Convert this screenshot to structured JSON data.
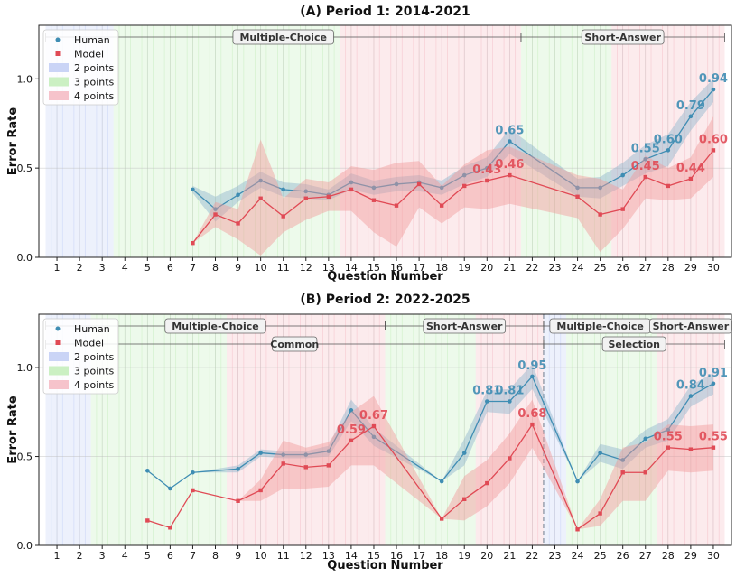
{
  "chart_data": [
    {
      "type": "line",
      "title": "(A) Period 1: 2014-2021",
      "xlabel": "Question Number",
      "ylabel": "Error Rate",
      "ylim": [
        0,
        1.3
      ],
      "yticks": [
        "0.0",
        "0.5",
        "1.0"
      ],
      "xticks": [
        1,
        2,
        3,
        4,
        5,
        6,
        7,
        8,
        9,
        10,
        11,
        12,
        13,
        14,
        15,
        16,
        17,
        18,
        19,
        20,
        21,
        22,
        23,
        24,
        25,
        26,
        27,
        28,
        29,
        30
      ],
      "grid": true,
      "legend_position": "top-left",
      "legend": [
        "Human",
        "Model",
        "2 points",
        "3 points",
        "4 points"
      ],
      "point_bands": [
        {
          "from": 1,
          "to": 3,
          "points": 2
        },
        {
          "from": 4,
          "to": 13,
          "points": 3
        },
        {
          "from": 14,
          "to": 21,
          "points": 4
        },
        {
          "from": 22,
          "to": 25,
          "points": 3
        },
        {
          "from": 26,
          "to": 30,
          "points": 4
        }
      ],
      "sections": [
        {
          "row": 0,
          "from": 1,
          "to": 21,
          "label": "Multiple-Choice"
        },
        {
          "row": 0,
          "from": 21,
          "to": 30,
          "label": "Short-Answer"
        }
      ],
      "series": [
        {
          "name": "Human",
          "x": [
            7,
            8,
            9,
            10,
            11,
            12,
            13,
            14,
            15,
            16,
            17,
            18,
            19,
            20,
            21,
            24,
            25,
            26,
            27,
            28,
            29,
            30
          ],
          "values": [
            0.38,
            0.27,
            0.35,
            0.43,
            0.38,
            0.37,
            0.35,
            0.42,
            0.39,
            0.41,
            0.42,
            0.39,
            0.46,
            0.5,
            0.65,
            0.39,
            0.39,
            0.46,
            0.55,
            0.6,
            0.79,
            0.94
          ],
          "lower": [
            0.36,
            0.2,
            0.31,
            0.39,
            0.34,
            0.33,
            0.32,
            0.38,
            0.35,
            0.37,
            0.37,
            0.35,
            0.41,
            0.45,
            0.58,
            0.34,
            0.33,
            0.4,
            0.47,
            0.51,
            0.71,
            0.87
          ],
          "upper": [
            0.4,
            0.34,
            0.4,
            0.48,
            0.42,
            0.41,
            0.38,
            0.47,
            0.43,
            0.45,
            0.46,
            0.43,
            0.51,
            0.56,
            0.72,
            0.44,
            0.45,
            0.53,
            0.63,
            0.69,
            0.87,
            1.0
          ]
        },
        {
          "name": "Model",
          "x": [
            7,
            8,
            9,
            10,
            11,
            12,
            13,
            14,
            15,
            16,
            17,
            18,
            19,
            20,
            21,
            24,
            25,
            26,
            27,
            28,
            29,
            30
          ],
          "values": [
            0.08,
            0.24,
            0.19,
            0.33,
            0.23,
            0.33,
            0.34,
            0.38,
            0.32,
            0.29,
            0.41,
            0.29,
            0.4,
            0.43,
            0.46,
            0.34,
            0.24,
            0.27,
            0.45,
            0.4,
            0.44,
            0.6
          ],
          "lower": [
            0.08,
            0.17,
            0.1,
            0.01,
            0.14,
            0.21,
            0.26,
            0.26,
            0.14,
            0.06,
            0.28,
            0.19,
            0.28,
            0.27,
            0.3,
            0.22,
            0.03,
            0.16,
            0.33,
            0.32,
            0.33,
            0.45
          ],
          "upper": [
            0.08,
            0.31,
            0.27,
            0.66,
            0.33,
            0.44,
            0.42,
            0.51,
            0.49,
            0.53,
            0.54,
            0.4,
            0.52,
            0.6,
            0.62,
            0.46,
            0.44,
            0.38,
            0.57,
            0.5,
            0.56,
            0.79
          ]
        }
      ],
      "data_labels": [
        {
          "series": "Human",
          "x": 21,
          "text": "0.65"
        },
        {
          "series": "Human",
          "x": 27,
          "text": "0.55"
        },
        {
          "series": "Human",
          "x": 28,
          "text": "0.60"
        },
        {
          "series": "Human",
          "x": 29,
          "text": "0.79"
        },
        {
          "series": "Human",
          "x": 30,
          "text": "0.94"
        },
        {
          "series": "Model",
          "x": 20,
          "text": "0.43"
        },
        {
          "series": "Model",
          "x": 21,
          "text": "0.46"
        },
        {
          "series": "Model",
          "x": 27,
          "text": "0.45"
        },
        {
          "series": "Model",
          "x": 29,
          "text": "0.44"
        },
        {
          "series": "Model",
          "x": 30,
          "text": "0.60"
        }
      ]
    },
    {
      "type": "line",
      "title": "(B) Period 2: 2022-2025",
      "xlabel": "Question Number",
      "ylabel": "Error Rate",
      "ylim": [
        0,
        1.3
      ],
      "yticks": [
        "0.0",
        "0.5",
        "1.0"
      ],
      "xticks": [
        1,
        2,
        3,
        4,
        5,
        6,
        7,
        8,
        9,
        10,
        11,
        12,
        13,
        14,
        15,
        16,
        17,
        18,
        19,
        20,
        21,
        22,
        23,
        24,
        25,
        26,
        27,
        28,
        29,
        30
      ],
      "grid": true,
      "legend_position": "top-left",
      "legend": [
        "Human",
        "Model",
        "2 points",
        "3 points",
        "4 points"
      ],
      "point_bands": [
        {
          "from": 1,
          "to": 2,
          "points": 2
        },
        {
          "from": 3,
          "to": 8,
          "points": 3
        },
        {
          "from": 9,
          "to": 15,
          "points": 4
        },
        {
          "from": 16,
          "to": 19,
          "points": 3
        },
        {
          "from": 20,
          "to": 22,
          "points": 4
        },
        {
          "from": 23,
          "to": 23,
          "points": 2
        },
        {
          "from": 24,
          "to": 27,
          "points": 3
        },
        {
          "from": 28,
          "to": 30,
          "points": 4
        }
      ],
      "divider_after": 22,
      "sections": [
        {
          "row": 0,
          "from": 1,
          "to": 15,
          "label": "Multiple-Choice"
        },
        {
          "row": 0,
          "from": 15,
          "to": 22,
          "label": "Short-Answer"
        },
        {
          "row": 0,
          "from": 23,
          "to": 27,
          "label": "Multiple-Choice"
        },
        {
          "row": 0,
          "from": 27,
          "to": 30,
          "label": "Short-Answer"
        },
        {
          "row": 1,
          "from": 1,
          "to": 22,
          "label": "Common"
        },
        {
          "row": 1,
          "from": 23,
          "to": 30,
          "label": "Selection"
        }
      ],
      "series": [
        {
          "name": "Human",
          "x": [
            5,
            6,
            7,
            9,
            10,
            11,
            12,
            13,
            14,
            15,
            18,
            19,
            20,
            21,
            22,
            24,
            25,
            26,
            27,
            28,
            29,
            30
          ],
          "values": [
            0.42,
            0.32,
            0.41,
            0.43,
            0.52,
            0.51,
            0.51,
            0.53,
            0.76,
            0.61,
            0.36,
            0.52,
            0.81,
            0.81,
            0.95,
            0.36,
            0.52,
            0.48,
            0.6,
            0.65,
            0.84,
            0.91
          ],
          "lower": [
            0.42,
            0.32,
            0.41,
            0.41,
            0.5,
            0.49,
            0.49,
            0.5,
            0.7,
            0.56,
            0.36,
            0.45,
            0.75,
            0.74,
            0.88,
            0.36,
            0.47,
            0.43,
            0.55,
            0.59,
            0.78,
            0.85
          ],
          "upper": [
            0.42,
            0.32,
            0.41,
            0.45,
            0.54,
            0.53,
            0.53,
            0.56,
            0.82,
            0.66,
            0.36,
            0.6,
            0.87,
            0.88,
            1.02,
            0.36,
            0.57,
            0.54,
            0.65,
            0.71,
            0.9,
            0.97
          ]
        },
        {
          "name": "Model",
          "x": [
            5,
            6,
            7,
            9,
            10,
            11,
            12,
            13,
            14,
            15,
            18,
            19,
            20,
            21,
            22,
            24,
            25,
            26,
            27,
            28,
            29,
            30
          ],
          "values": [
            0.14,
            0.1,
            0.31,
            0.25,
            0.31,
            0.46,
            0.44,
            0.45,
            0.59,
            0.67,
            0.15,
            0.26,
            0.35,
            0.49,
            0.68,
            0.09,
            0.18,
            0.41,
            0.41,
            0.55,
            0.54,
            0.55
          ],
          "lower": [
            0.14,
            0.1,
            0.31,
            0.25,
            0.25,
            0.32,
            0.32,
            0.33,
            0.45,
            0.45,
            0.15,
            0.14,
            0.22,
            0.35,
            0.55,
            0.09,
            0.11,
            0.25,
            0.25,
            0.42,
            0.41,
            0.42
          ],
          "upper": [
            0.14,
            0.1,
            0.31,
            0.25,
            0.37,
            0.59,
            0.55,
            0.58,
            0.75,
            0.84,
            0.15,
            0.39,
            0.48,
            0.63,
            0.82,
            0.09,
            0.26,
            0.55,
            0.58,
            0.68,
            0.67,
            0.68
          ]
        }
      ],
      "data_labels": [
        {
          "series": "Human",
          "x": 20,
          "text": "0.81"
        },
        {
          "series": "Human",
          "x": 21,
          "text": "0.81"
        },
        {
          "series": "Human",
          "x": 22,
          "text": "0.95"
        },
        {
          "series": "Human",
          "x": 29,
          "text": "0.84"
        },
        {
          "series": "Human",
          "x": 30,
          "text": "0.91"
        },
        {
          "series": "Model",
          "x": 14,
          "text": "0.59"
        },
        {
          "series": "Model",
          "x": 15,
          "text": "0.67"
        },
        {
          "series": "Model",
          "x": 22,
          "text": "0.68"
        },
        {
          "series": "Model",
          "x": 28,
          "text": "0.55"
        },
        {
          "series": "Model",
          "x": 30,
          "text": "0.55"
        }
      ]
    }
  ],
  "colors": {
    "human": "#3f8db3",
    "model": "#e04a55",
    "human_band": "#8fb3cc",
    "model_band": "#f29a9a",
    "points_2": "#c7d2f5",
    "points_3": "#c8efc0",
    "points_4": "#f5c0c8"
  }
}
